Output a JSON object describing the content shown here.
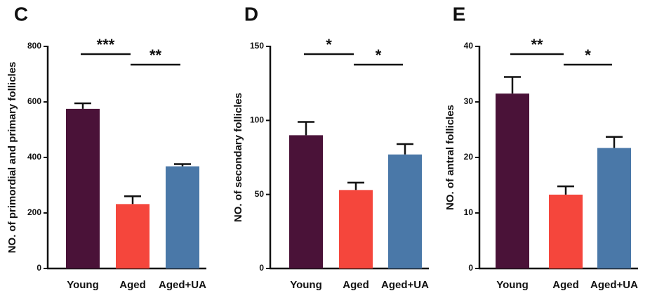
{
  "chart_data": [
    {
      "type": "bar",
      "panel": "C",
      "y_label": "NO. of primordial and primary follicles",
      "categories": [
        "Young",
        "Aged",
        "Aged+UA"
      ],
      "values": [
        575,
        232,
        368
      ],
      "errors": [
        20,
        28,
        8
      ],
      "colors": [
        "#4a1238",
        "#f5463c",
        "#4a78a8"
      ],
      "ylim": [
        0,
        800
      ],
      "yticks": [
        0,
        200,
        400,
        600,
        800
      ],
      "annotations": [
        "***",
        "**"
      ]
    },
    {
      "type": "bar",
      "panel": "D",
      "y_label": "NO. of secondary follicles",
      "categories": [
        "Young",
        "Aged",
        "Aged+UA"
      ],
      "values": [
        90,
        53,
        77
      ],
      "errors": [
        9,
        5,
        7
      ],
      "colors": [
        "#4a1238",
        "#f5463c",
        "#4a78a8"
      ],
      "ylim": [
        0,
        150
      ],
      "yticks": [
        0,
        50,
        100,
        150
      ],
      "annotations": [
        "*",
        "*"
      ]
    },
    {
      "type": "bar",
      "panel": "E",
      "y_label": "NO. of antral follicles",
      "categories": [
        "Young",
        "Aged",
        "Aged+UA"
      ],
      "values": [
        31.5,
        13.3,
        21.7
      ],
      "errors": [
        3,
        1.5,
        2
      ],
      "colors": [
        "#4a1238",
        "#f5463c",
        "#4a78a8"
      ],
      "ylim": [
        0,
        40
      ],
      "yticks": [
        0,
        10,
        20,
        30,
        40
      ],
      "annotations": [
        "**",
        "*"
      ]
    }
  ]
}
